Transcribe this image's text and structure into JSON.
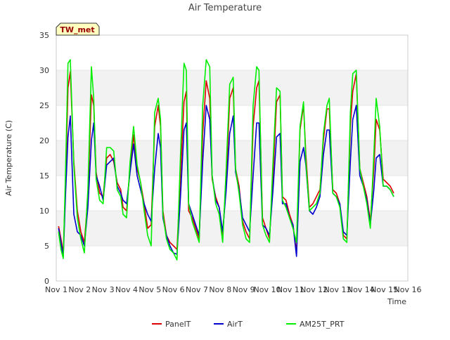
{
  "chart_data": {
    "type": "line",
    "title": "Air Temperature",
    "xlabel": "Time",
    "ylabel": "Air Temperature (C)",
    "badge": "TW_met",
    "xlim": [
      1,
      16
    ],
    "ylim": [
      0,
      35
    ],
    "x_ticks": [
      1,
      2,
      3,
      4,
      5,
      6,
      7,
      8,
      9,
      10,
      11,
      12,
      13,
      14,
      15,
      16
    ],
    "x_tick_labels": [
      "Nov 1",
      "Nov 2",
      "Nov 3",
      "Nov 4",
      "Nov 5",
      "Nov 6",
      "Nov 7",
      "Nov 8",
      "Nov 9",
      "Nov 10",
      "Nov 11",
      "Nov 12",
      "Nov 13",
      "Nov 14",
      "Nov 15",
      "Nov 16"
    ],
    "y_ticks": [
      0,
      5,
      10,
      15,
      20,
      25,
      30,
      35
    ],
    "grid": "horizontal bands",
    "legend_position": "bottom-center",
    "x": [
      1.1,
      1.2,
      1.3,
      1.4,
      1.5,
      1.6,
      1.75,
      1.9,
      2.05,
      2.2,
      2.35,
      2.5,
      2.6,
      2.7,
      2.85,
      3.0,
      3.15,
      3.3,
      3.45,
      3.6,
      3.75,
      3.85,
      4.0,
      4.15,
      4.3,
      4.45,
      4.6,
      4.75,
      4.9,
      5.05,
      5.2,
      5.35,
      5.45,
      5.55,
      5.7,
      5.85,
      6.0,
      6.15,
      6.3,
      6.45,
      6.55,
      6.65,
      6.8,
      6.95,
      7.1,
      7.25,
      7.4,
      7.55,
      7.65,
      7.8,
      7.95,
      8.1,
      8.25,
      8.4,
      8.55,
      8.65,
      8.8,
      8.95,
      9.1,
      9.25,
      9.4,
      9.55,
      9.65,
      9.8,
      9.95,
      10.1,
      10.25,
      10.4,
      10.55,
      10.65,
      10.8,
      10.95,
      11.1,
      11.25,
      11.4,
      11.55,
      11.65,
      11.8,
      11.95,
      12.1,
      12.25,
      12.4,
      12.55,
      12.65,
      12.8,
      12.95,
      13.1,
      13.25,
      13.4,
      13.55,
      13.65,
      13.8,
      13.95,
      14.1,
      14.25,
      14.4,
      14.55,
      14.65,
      14.8,
      14.95,
      15.1,
      15.25,
      15.4
    ],
    "series": [
      {
        "name": "PanelT",
        "color": "#dd0000",
        "values": [
          7.8,
          6.0,
          4.0,
          14.0,
          27.5,
          29.8,
          17.0,
          10.0,
          7.0,
          5.5,
          12.0,
          26.5,
          25.0,
          15.5,
          12.5,
          12.0,
          17.5,
          18.0,
          17.0,
          14.0,
          13.0,
          10.5,
          10.0,
          16.0,
          20.8,
          16.0,
          14.0,
          11.0,
          7.5,
          8.0,
          22.0,
          25.0,
          22.0,
          10.0,
          6.5,
          5.5,
          5.0,
          4.5,
          15.0,
          25.5,
          27.0,
          10.0,
          9.0,
          7.5,
          6.0,
          21.0,
          28.5,
          26.0,
          14.5,
          12.0,
          10.5,
          6.5,
          14.0,
          26.0,
          27.5,
          16.0,
          13.5,
          8.5,
          7.0,
          6.0,
          22.0,
          27.5,
          28.5,
          9.0,
          7.5,
          6.0,
          15.0,
          25.5,
          26.5,
          12.0,
          11.5,
          9.5,
          8.0,
          4.0,
          21.5,
          25.0,
          18.0,
          10.5,
          11.0,
          12.0,
          13.0,
          20.0,
          24.5,
          24.5,
          13.0,
          12.5,
          11.0,
          6.5,
          6.0,
          22.0,
          27.0,
          29.5,
          16.0,
          14.0,
          12.0,
          8.5,
          16.0,
          23.0,
          21.5,
          14.5,
          14.0,
          13.5,
          12.5
        ]
      },
      {
        "name": "AirT",
        "color": "#0000cc",
        "values": [
          7.5,
          5.5,
          3.5,
          12.5,
          20.5,
          23.5,
          9.5,
          7.0,
          6.5,
          5.0,
          10.5,
          20.0,
          22.5,
          15.0,
          13.5,
          11.5,
          16.5,
          17.0,
          17.5,
          13.5,
          12.5,
          11.5,
          11.0,
          15.5,
          19.5,
          15.0,
          13.0,
          11.0,
          9.5,
          8.5,
          16.0,
          21.0,
          19.0,
          9.0,
          6.5,
          5.0,
          4.0,
          3.8,
          12.0,
          21.5,
          22.5,
          11.0,
          9.5,
          8.0,
          6.5,
          17.0,
          25.0,
          23.0,
          15.0,
          11.5,
          10.5,
          7.0,
          13.0,
          21.0,
          23.5,
          15.5,
          13.0,
          9.0,
          8.0,
          7.0,
          15.0,
          22.5,
          22.5,
          8.0,
          7.5,
          6.5,
          13.0,
          20.5,
          21.0,
          11.0,
          11.0,
          9.0,
          8.0,
          3.5,
          17.0,
          19.0,
          16.5,
          10.0,
          9.5,
          10.5,
          12.0,
          18.0,
          21.5,
          21.5,
          12.5,
          12.0,
          11.0,
          7.0,
          6.5,
          17.0,
          23.0,
          25.0,
          15.0,
          13.5,
          11.5,
          8.0,
          13.0,
          17.5,
          18.0,
          13.5,
          13.5,
          13.0,
          12.0
        ]
      },
      {
        "name": "AM25T_PRT",
        "color": "#00ee00",
        "values": [
          7.0,
          4.5,
          3.2,
          16.0,
          31.0,
          31.5,
          16.5,
          9.0,
          6.0,
          4.0,
          13.0,
          30.5,
          26.0,
          14.5,
          11.5,
          11.0,
          19.0,
          19.0,
          18.5,
          13.0,
          12.0,
          9.5,
          9.0,
          17.0,
          22.0,
          16.5,
          14.0,
          10.0,
          6.5,
          5.0,
          24.0,
          26.0,
          23.0,
          9.5,
          6.0,
          4.5,
          4.0,
          3.0,
          18.0,
          31.0,
          30.0,
          11.0,
          8.5,
          7.0,
          5.5,
          25.0,
          31.5,
          30.5,
          15.0,
          11.0,
          9.5,
          5.5,
          16.0,
          28.0,
          29.0,
          16.0,
          12.5,
          8.0,
          6.0,
          5.5,
          25.0,
          30.5,
          30.0,
          8.0,
          6.5,
          5.5,
          17.0,
          27.5,
          27.0,
          11.5,
          10.5,
          9.0,
          7.5,
          5.5,
          22.0,
          25.5,
          17.0,
          10.0,
          10.5,
          11.0,
          12.5,
          21.0,
          25.0,
          26.0,
          12.5,
          12.0,
          10.5,
          6.0,
          5.5,
          24.0,
          29.5,
          30.0,
          16.0,
          13.5,
          11.0,
          7.5,
          18.0,
          26.0,
          22.0,
          13.5,
          13.5,
          13.0,
          12.0
        ]
      }
    ]
  }
}
